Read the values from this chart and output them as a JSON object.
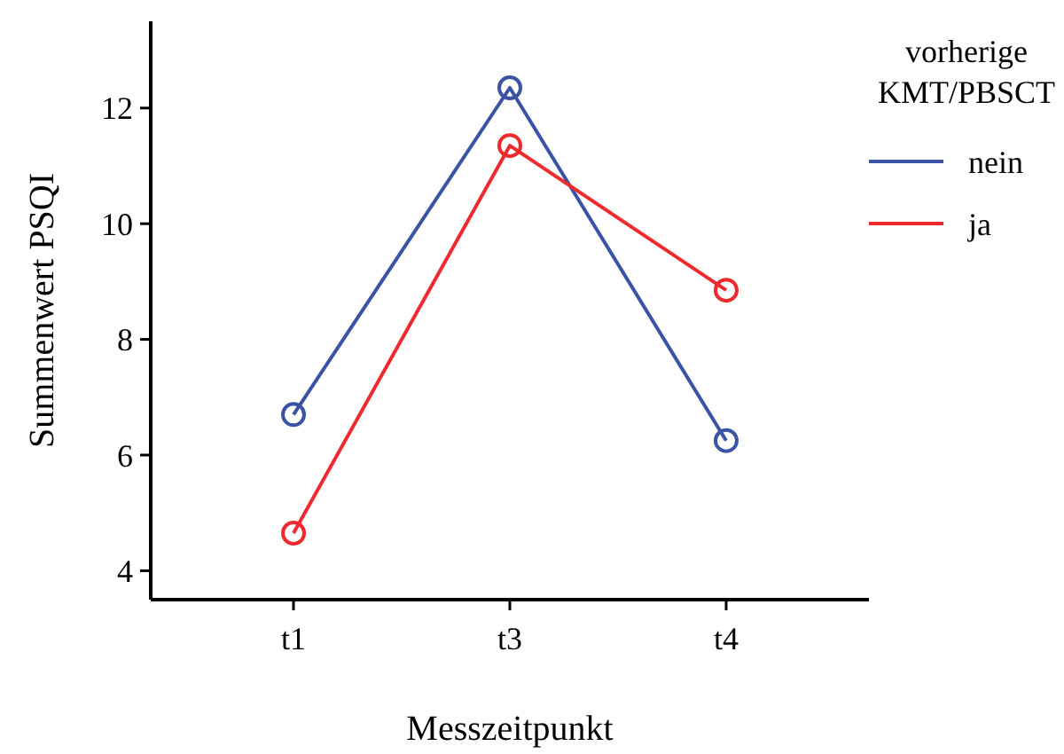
{
  "chart_data": {
    "type": "line",
    "xlabel": "Messzeitpunkt",
    "ylabel": "Summenwert PSQI",
    "legend_title": "vorherige KMT/PBSCT",
    "legend": "right",
    "marker": "circle",
    "categories": [
      "t1",
      "t3",
      "t4"
    ],
    "ylim": [
      3.5,
      13.5
    ],
    "yticks": [
      4,
      6,
      8,
      10,
      12
    ],
    "series": [
      {
        "name": "nein",
        "color": "#3a53a4",
        "values": [
          6.7,
          12.35,
          6.25
        ]
      },
      {
        "name": "ja",
        "color": "#ee2a2e",
        "values": [
          4.65,
          11.35,
          8.85
        ]
      }
    ]
  }
}
